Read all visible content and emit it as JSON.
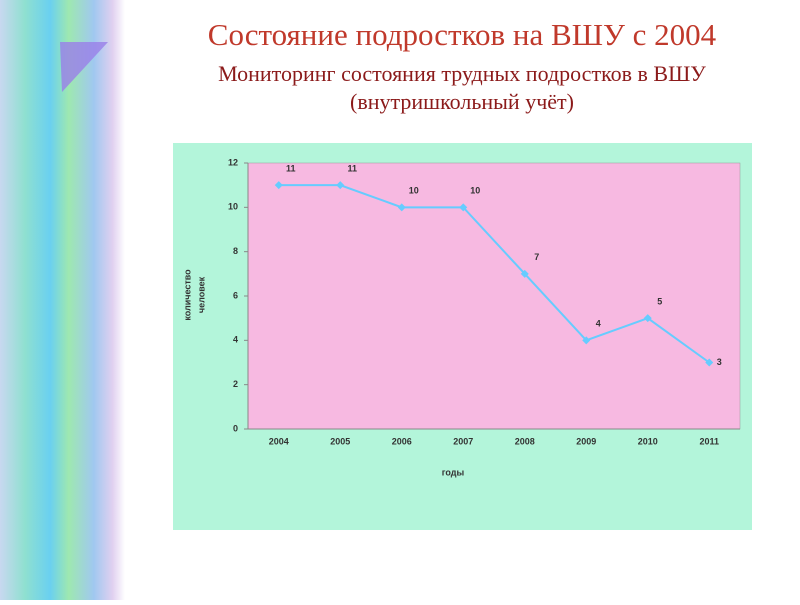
{
  "chart_data": {
    "type": "line",
    "title": "Состояние подростков на ВШУ с 2004",
    "subtitle_lines": [
      "Мониторинг состояния трудных подростков в ВШУ",
      "(внутришкольный учёт)"
    ],
    "x_label": "годы",
    "y_label_lines": [
      "количество",
      "человек"
    ],
    "categories": [
      "2004",
      "2005",
      "2006",
      "2007",
      "2008",
      "2009",
      "2010",
      "2011"
    ],
    "series": [
      {
        "color": "#66ccff",
        "values": [
          11,
          11,
          10,
          10,
          7,
          4,
          5,
          3
        ]
      }
    ],
    "ylim": [
      0,
      12
    ],
    "yticks": [
      0,
      2,
      4,
      6,
      8,
      10,
      12
    ],
    "grid": false
  }
}
